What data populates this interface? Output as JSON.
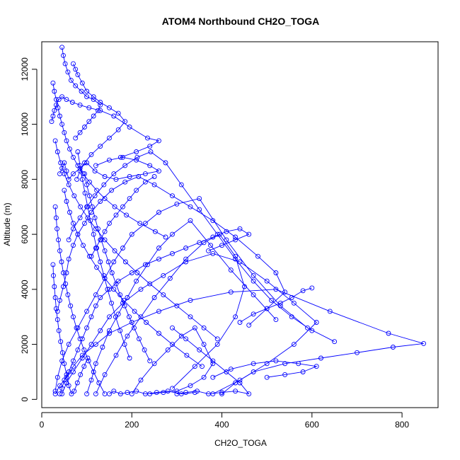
{
  "chart_data": {
    "type": "scatter",
    "title": "ATOM4 Northbound CH2O_TOGA",
    "xlabel": "CH2O_TOGA",
    "ylabel": "Altitude (m)",
    "xlim": [
      0,
      880
    ],
    "ylim": [
      -300,
      13000
    ],
    "xticks": [
      0,
      200,
      400,
      600,
      800
    ],
    "yticks": [
      0,
      2000,
      4000,
      6000,
      8000,
      10000,
      12000
    ],
    "grid": false,
    "legend": "none",
    "marker": "open-circle",
    "connect_points": true,
    "series_color": "#0000ff",
    "series": [
      {
        "x": [
          40,
          45,
          50,
          60,
          70,
          80,
          90,
          100,
          110,
          120,
          130,
          150,
          170,
          200,
          230,
          260,
          290,
          320,
          350,
          380,
          410,
          440,
          460,
          430,
          400,
          370
        ],
        "y": [
          200,
          400,
          700,
          1000,
          1400,
          1800,
          2200,
          2600,
          3000,
          3400,
          3700,
          4000,
          4300,
          4600,
          4900,
          5100,
          5300,
          5500,
          5700,
          5900,
          6100,
          6200,
          6000,
          5800,
          5600,
          5400
        ]
      },
      {
        "x": [
          30,
          40,
          55,
          70,
          90,
          120,
          150,
          200,
          260,
          330,
          420,
          520,
          640,
          770,
          848,
          780,
          700,
          620,
          540,
          470,
          430,
          400
        ],
        "y": [
          200,
          500,
          800,
          1200,
          1600,
          2000,
          2400,
          2800,
          3200,
          3600,
          3900,
          4000,
          3200,
          2400,
          2030,
          1900,
          1700,
          1500,
          1300,
          1000,
          600,
          200
        ]
      },
      {
        "x": [
          45,
          55,
          70,
          90,
          110,
          130,
          150,
          180,
          220,
          270,
          320,
          380,
          440,
          500,
          560,
          610,
          560,
          500,
          440,
          380
        ],
        "y": [
          200,
          600,
          1000,
          1500,
          2000,
          2500,
          3000,
          3500,
          4000,
          4500,
          5000,
          5300,
          5000,
          4300,
          3500,
          2800,
          2000,
          1300,
          700,
          200
        ]
      },
      {
        "x": [
          30,
          35,
          45,
          60,
          80,
          100,
          120,
          140,
          160,
          180,
          200,
          230,
          260,
          300,
          350,
          410,
          470,
          530,
          590,
          650
        ],
        "y": [
          300,
          800,
          1400,
          2000,
          2600,
          3200,
          3800,
          4400,
          5000,
          5500,
          6000,
          6400,
          6800,
          7100,
          7300,
          5800,
          4500,
          3400,
          2600,
          2100
        ]
      },
      {
        "x": [
          100,
          110,
          120,
          135,
          150,
          170,
          190,
          210,
          235,
          260,
          290,
          330,
          375,
          420,
          470,
          520
        ],
        "y": [
          200,
          700,
          1300,
          1900,
          2500,
          3100,
          3700,
          4300,
          4900,
          5500,
          6000,
          6500,
          5600,
          4700,
          3800,
          2900
        ]
      },
      {
        "x": [
          120,
          140,
          165,
          190,
          220,
          250,
          285,
          320,
          360,
          395,
          430,
          450,
          430,
          390,
          340,
          290
        ],
        "y": [
          200,
          900,
          1600,
          2300,
          3000,
          3700,
          4400,
          5100,
          5700,
          6000,
          5200,
          4100,
          3000,
          2000,
          1200,
          400
        ]
      },
      {
        "x": [
          200,
          220,
          250,
          280,
          310,
          340,
          360,
          380,
          360,
          330,
          300,
          270,
          240
        ],
        "y": [
          200,
          700,
          1300,
          1800,
          2300,
          2600,
          2000,
          1300,
          800,
          500,
          300,
          250,
          200
        ]
      },
      {
        "x": [
          35,
          40,
          48,
          55,
          60,
          70,
          80,
          95,
          110,
          130,
          155,
          185,
          215,
          250,
          290,
          330,
          380,
          430,
          480,
          520,
          540,
          500,
          460
        ],
        "y": [
          3200,
          3600,
          4100,
          4600,
          5100,
          5600,
          6000,
          6400,
          6800,
          7200,
          7600,
          7900,
          8100,
          7800,
          7400,
          7000,
          6500,
          5900,
          5200,
          4600,
          3900,
          3300,
          2700
        ]
      },
      {
        "x": [
          60,
          70,
          85,
          100,
          118,
          138,
          160,
          185,
          212,
          242,
          275,
          310,
          350,
          390,
          430,
          470,
          510,
          555,
          600
        ],
        "y": [
          5800,
          6200,
          6600,
          7000,
          7400,
          7800,
          8200,
          8500,
          8800,
          9000,
          8600,
          7800,
          6900,
          6000,
          5100,
          4300,
          3600,
          3000,
          2500
        ]
      },
      {
        "x": [
          25,
          28,
          32,
          36,
          40,
          45,
          50,
          55,
          62,
          70,
          80,
          92,
          106,
          122,
          140,
          162,
          188,
          218,
          252,
          275
        ],
        "y": [
          11500,
          11200,
          10900,
          10600,
          10300,
          10000,
          9700,
          9400,
          9100,
          8800,
          8500,
          8200,
          7900,
          7600,
          7300,
          7000,
          6700,
          6400,
          6100,
          5900
        ]
      },
      {
        "x": [
          22,
          25,
          28,
          32,
          38,
          45,
          55,
          68,
          85,
          105,
          130,
          160,
          195,
          235,
          260,
          240,
          210,
          175
        ],
        "y": [
          10100,
          10300,
          10500,
          10700,
          10900,
          11000,
          10900,
          10800,
          10700,
          10600,
          10500,
          10300,
          9900,
          9500,
          9400,
          9200,
          9000,
          8800
        ]
      },
      {
        "x": [
          40,
          45,
          50,
          55,
          60,
          70,
          85,
          100,
          118,
          140,
          165,
          195,
          230,
          260,
          240,
          210,
          180,
          150,
          120
        ],
        "y": [
          8200,
          8400,
          8600,
          8300,
          8000,
          8200,
          8400,
          8600,
          8300,
          8100,
          8000,
          8100,
          8200,
          8300,
          8500,
          8700,
          8800,
          8700,
          8500
        ]
      },
      {
        "x": [
          45,
          48,
          52,
          58,
          65,
          75,
          88,
          100,
          115,
          130,
          125,
          115,
          105,
          95,
          85,
          75
        ],
        "y": [
          12800,
          12500,
          12200,
          11900,
          11600,
          11400,
          11200,
          11000,
          10900,
          10700,
          10500,
          10300,
          10100,
          9900,
          9700,
          9500
        ]
      },
      {
        "x": [
          70,
          75,
          80,
          90,
          100,
          115,
          130,
          150,
          170,
          185,
          170,
          150,
          130,
          110,
          95,
          85,
          78
        ],
        "y": [
          12200,
          12000,
          11800,
          11500,
          11200,
          11000,
          10800,
          10600,
          10400,
          10100,
          9800,
          9500,
          9200,
          8900,
          8600,
          8300,
          8000
        ]
      },
      {
        "x": [
          30,
          35,
          42,
          50,
          60,
          72,
          86,
          102,
          120,
          140,
          162,
          186,
          212,
          240,
          270,
          300,
          330,
          360,
          390
        ],
        "y": [
          9400,
          9000,
          8600,
          8200,
          7800,
          7400,
          7000,
          6600,
          6200,
          5800,
          5400,
          5000,
          4600,
          4200,
          3800,
          3400,
          3000,
          2600,
          2200
        ]
      },
      {
        "x": [
          50,
          55,
          62,
          70,
          80,
          92,
          106,
          122,
          140,
          160,
          182,
          206,
          232,
          260,
          290,
          322,
          356
        ],
        "y": [
          7600,
          7200,
          6800,
          6400,
          6000,
          5600,
          5200,
          4800,
          4400,
          4000,
          3600,
          3200,
          2800,
          2400,
          2000,
          1600,
          1200
        ]
      },
      {
        "x": [
          30,
          32,
          34,
          37,
          40,
          44,
          48,
          53,
          58,
          64,
          70,
          77,
          85,
          94,
          104,
          115,
          127,
          140
        ],
        "y": [
          7000,
          6600,
          6200,
          5800,
          5400,
          5000,
          4600,
          4200,
          3800,
          3400,
          3000,
          2600,
          2200,
          1800,
          1400,
          1000,
          600,
          200
        ]
      },
      {
        "x": [
          80,
          85,
          90,
          96,
          102,
          108,
          115,
          122,
          130,
          138,
          146,
          155,
          164,
          174,
          184,
          195
        ],
        "y": [
          9000,
          8500,
          8000,
          7500,
          7000,
          6500,
          6000,
          5500,
          5000,
          4500,
          4000,
          3500,
          3000,
          2500,
          2000,
          1500
        ]
      },
      {
        "x": [
          95,
          100,
          106,
          112,
          118,
          125,
          132,
          140,
          148,
          156,
          165,
          174,
          184,
          194,
          205,
          216,
          228,
          240
        ],
        "y": [
          8200,
          7800,
          7400,
          7000,
          6600,
          6200,
          5800,
          5400,
          5000,
          4600,
          4200,
          3800,
          3400,
          3000,
          2600,
          2200,
          1800,
          1400
        ]
      },
      {
        "x": [
          25,
          26,
          28,
          30,
          32,
          35,
          38,
          42,
          46,
          50,
          55,
          60,
          66,
          72,
          79,
          86,
          94,
          102
        ],
        "y": [
          4900,
          4500,
          4100,
          3700,
          3300,
          2900,
          2500,
          2100,
          1700,
          1300,
          900,
          500,
          200,
          300,
          600,
          900,
          1200,
          1500
        ]
      },
      {
        "x": [
          300,
          320,
          345,
          370,
          400,
          430,
          460,
          440,
          410,
          380,
          350,
          320,
          290
        ],
        "y": [
          200,
          250,
          300,
          200,
          250,
          300,
          200,
          600,
          1000,
          1400,
          1800,
          2200,
          2600
        ]
      },
      {
        "x": [
          380,
          420,
          470,
          520,
          570,
          610,
          580,
          540,
          500
        ],
        "y": [
          800,
          1100,
          1300,
          1400,
          1300,
          1200,
          1000,
          900,
          800
        ]
      },
      {
        "x": [
          150,
          160,
          175,
          190,
          210,
          230,
          255,
          280,
          310,
          340
        ],
        "y": [
          200,
          300,
          200,
          250,
          300,
          200,
          250,
          300,
          200,
          250
        ]
      },
      {
        "x": [
          440,
          470,
          500,
          530,
          555,
          580,
          600
        ],
        "y": [
          2800,
          3100,
          3300,
          3500,
          3700,
          3950,
          4050
        ]
      },
      {
        "x": [
          110,
          120,
          130,
          140,
          150,
          165,
          180,
          195,
          210,
          230,
          250
        ],
        "y": [
          5200,
          5500,
          5800,
          6100,
          6400,
          6700,
          7000,
          7300,
          7600,
          7900,
          8100
        ]
      }
    ]
  }
}
